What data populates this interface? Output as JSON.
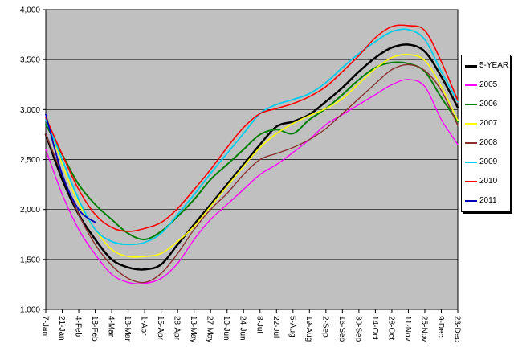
{
  "chart": {
    "title": "",
    "background": "#ffffff",
    "plot_background": "#c0c0c0",
    "grid_color": "#000000",
    "axis_color": "#000000",
    "text_color": "#000000",
    "legend_border_color": "#000000"
  },
  "chart_data": {
    "type": "line",
    "title": "",
    "xlabel": "",
    "ylabel": "",
    "grid": true,
    "legend_position": "right",
    "ylim": [
      1000,
      4000
    ],
    "ytick_step": 500,
    "ytick_labels": [
      "1,000",
      "1,500",
      "2,000",
      "2,500",
      "3,000",
      "3,500",
      "4,000"
    ],
    "categories": [
      "7-Jan",
      "21-Jan",
      "4-Feb",
      "18-Feb",
      "4-Mar",
      "18-Mar",
      "1-Apr",
      "15-Apr",
      "28-Apr",
      "13-May",
      "27-May",
      "10-Jun",
      "24-Jun",
      "8-Jul",
      "22-Jul",
      "5-Aug",
      "19-Aug",
      "2-Sep",
      "16-Sep",
      "30-Sep",
      "14-Oct",
      "28-Oct",
      "11-Nov",
      "25-Nov",
      "9-Dec",
      "23-Dec"
    ],
    "series": [
      {
        "name": "5-YEAR",
        "color": "#000000",
        "width": 2.5,
        "values": [
          2750,
          2300,
          1950,
          1700,
          1500,
          1420,
          1400,
          1450,
          1650,
          1850,
          2050,
          2250,
          2450,
          2650,
          2830,
          2880,
          2950,
          3080,
          3220,
          3380,
          3520,
          3620,
          3650,
          3580,
          3330,
          3020
        ]
      },
      {
        "name": "2005",
        "color": "#ff00ff",
        "width": 1.4,
        "values": [
          2600,
          2150,
          1800,
          1550,
          1350,
          1270,
          1260,
          1310,
          1460,
          1700,
          1900,
          2050,
          2200,
          2350,
          2450,
          2570,
          2700,
          2850,
          2950,
          3050,
          3150,
          3250,
          3300,
          3230,
          2900,
          2650
        ]
      },
      {
        "name": "2006",
        "color": "#008000",
        "width": 2,
        "values": [
          2850,
          2550,
          2250,
          2050,
          1900,
          1760,
          1700,
          1780,
          1930,
          2100,
          2300,
          2450,
          2600,
          2750,
          2800,
          2760,
          2900,
          3010,
          3150,
          3300,
          3420,
          3470,
          3460,
          3380,
          3120,
          2880
        ]
      },
      {
        "name": "2007",
        "color": "#ffff00",
        "width": 1.6,
        "values": [
          2950,
          2450,
          2060,
          1800,
          1600,
          1530,
          1530,
          1560,
          1680,
          1830,
          2030,
          2230,
          2430,
          2620,
          2760,
          2860,
          2940,
          3010,
          3110,
          3260,
          3410,
          3520,
          3550,
          3490,
          3230,
          2890
        ]
      },
      {
        "name": "2008",
        "color": "#8b3030",
        "width": 1.4,
        "values": [
          2750,
          2350,
          1950,
          1650,
          1440,
          1310,
          1270,
          1360,
          1560,
          1800,
          2000,
          2160,
          2350,
          2500,
          2560,
          2620,
          2700,
          2810,
          2960,
          3110,
          3260,
          3400,
          3450,
          3390,
          3190,
          2840
        ]
      },
      {
        "name": "2009",
        "color": "#00ccee",
        "width": 1.8,
        "values": [
          2900,
          2500,
          2100,
          1800,
          1680,
          1650,
          1670,
          1760,
          1950,
          2150,
          2360,
          2560,
          2760,
          2960,
          3050,
          3100,
          3160,
          3270,
          3420,
          3560,
          3680,
          3780,
          3800,
          3700,
          3380,
          3080
        ]
      },
      {
        "name": "2010",
        "color": "#ff0000",
        "width": 1.6,
        "values": [
          2920,
          2550,
          2200,
          1950,
          1820,
          1780,
          1810,
          1870,
          2010,
          2200,
          2400,
          2620,
          2820,
          2960,
          3010,
          3060,
          3130,
          3230,
          3380,
          3540,
          3720,
          3830,
          3840,
          3790,
          3480,
          3090
        ]
      },
      {
        "name": "2011",
        "color": "#0000bb",
        "width": 1.8,
        "values": [
          2950,
          2350,
          2000,
          1870,
          null,
          null,
          null,
          null,
          null,
          null,
          null,
          null,
          null,
          null,
          null,
          null,
          null,
          null,
          null,
          null,
          null,
          null,
          null,
          null,
          null,
          null
        ]
      }
    ]
  }
}
